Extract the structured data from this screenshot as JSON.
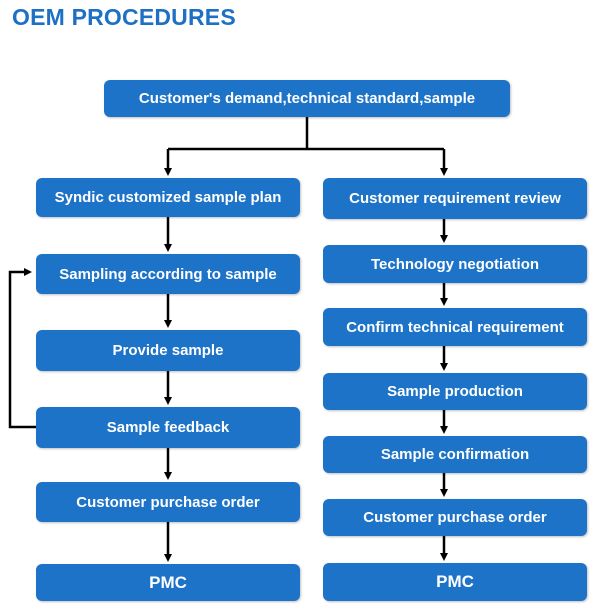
{
  "title": "OEM PROCEDURES",
  "top": "Customer's demand,technical standard,sample",
  "left_steps": [
    "Syndic customized sample plan",
    "Sampling according to sample",
    "Provide sample",
    "Sample feedback",
    "Customer purchase order",
    "PMC"
  ],
  "right_steps": [
    "Customer requirement review",
    "Technology negotiation",
    "Confirm technical requirement",
    "Sample production",
    "Sample confirmation",
    "Customer purchase order",
    "PMC"
  ],
  "colors": {
    "title": "#1d70c4",
    "box": "#1d73c8",
    "box_text": "#ffffff",
    "line": "#000000"
  }
}
